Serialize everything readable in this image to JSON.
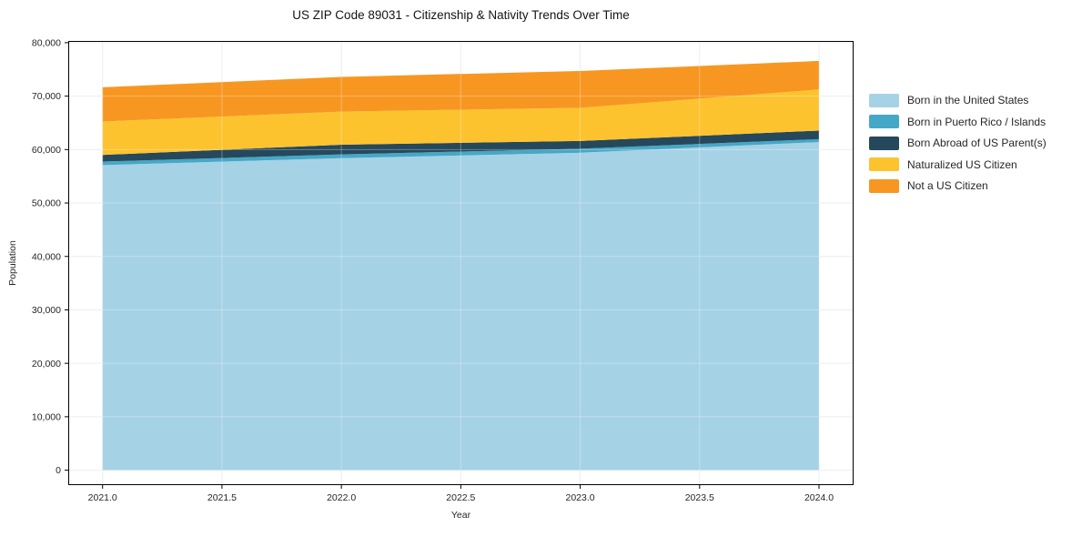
{
  "title": "US ZIP Code 89031 - Citizenship & Nativity Trends Over Time",
  "chart_data": {
    "type": "area",
    "stacked": true,
    "title": "US ZIP Code 89031 - Citizenship & Nativity Trends Over Time",
    "xlabel": "Year",
    "ylabel": "Population",
    "x": [
      2021,
      2022,
      2023,
      2024
    ],
    "series": [
      {
        "name": "Born in the United States",
        "color": "#a6d2e6",
        "values": [
          57100,
          58400,
          59400,
          61400
        ]
      },
      {
        "name": "Born in Puerto Rico / Islands",
        "color": "#45a8c6",
        "values": [
          650,
          700,
          750,
          550
        ]
      },
      {
        "name": "Born Abroad of US Parent(s)",
        "color": "#26485c",
        "values": [
          1250,
          1800,
          1450,
          1600
        ]
      },
      {
        "name": "Naturalized US Citizen",
        "color": "#fdc32f",
        "values": [
          6250,
          6200,
          6200,
          7700
        ]
      },
      {
        "name": "Not a US Citizen",
        "color": "#f79722",
        "values": [
          6400,
          6500,
          6900,
          5350
        ]
      }
    ],
    "totals": [
      71650,
      73600,
      74700,
      76600
    ],
    "x_ticks": [
      2021.0,
      2021.5,
      2022.0,
      2022.5,
      2023.0,
      2023.5,
      2024.0
    ],
    "x_tick_labels": [
      "2021.0",
      "2021.5",
      "2022.0",
      "2022.5",
      "2023.0",
      "2023.5",
      "2024.0"
    ],
    "y_ticks": [
      0,
      10000,
      20000,
      30000,
      40000,
      50000,
      60000,
      70000,
      80000
    ],
    "y_tick_labels": [
      "0",
      "10,000",
      "20,000",
      "30,000",
      "40,000",
      "50,000",
      "60,000",
      "70,000",
      "80,000"
    ],
    "xlim": [
      2020.855,
      2024.145
    ],
    "ylim": [
      -2800,
      80330
    ],
    "grid": true,
    "legend_position": "right of axes",
    "colors": {
      "grid": "#e7e7e7",
      "spine": "#000000",
      "tick_text": "#262626"
    }
  }
}
